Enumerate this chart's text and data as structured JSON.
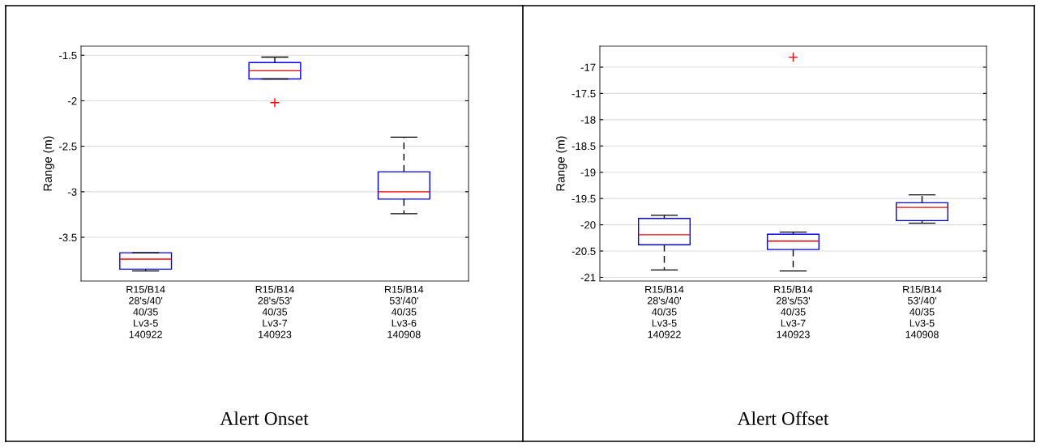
{
  "chart_data": [
    {
      "type": "box",
      "title": "Alert Onset",
      "ylabel": "Range (m)",
      "categories": [
        "R15/B14\n28's/40'\n40/35\nLv3-5\n140922",
        "R15/B14\n28's/53'\n40/35\nLv3-7\n140923",
        "R15/B14\n53'/40'\n40/35\nLv3-6\n140908"
      ],
      "boxes": [
        {
          "low": -3.87,
          "q1": -3.85,
          "median": -3.74,
          "q3": -3.67,
          "high": -3.67
        },
        {
          "low": -1.76,
          "q1": -1.76,
          "median": -1.67,
          "q3": -1.58,
          "high": -1.52,
          "outliers": [
            -2.02
          ]
        },
        {
          "low": -3.24,
          "q1": -3.08,
          "median": -3.0,
          "q3": -2.78,
          "high": -2.4
        }
      ],
      "ylim": [
        -3.98,
        -1.4
      ],
      "yticks": [
        -3.5,
        -3,
        -2.5,
        -2,
        -1.5
      ],
      "grid": "y"
    },
    {
      "type": "box",
      "title": "Alert Offset",
      "ylabel": "Range (m)",
      "categories": [
        "R15/B14\n28's/40'\n40/35\nLv3-5\n140922",
        "R15/B14\n28's/53'\n40/35\nLv3-7\n140923",
        "R15/B14\n53'/40'\n40/35\nLv3-5\n140908"
      ],
      "boxes": [
        {
          "low": -20.86,
          "q1": -20.38,
          "median": -20.19,
          "q3": -19.88,
          "high": -19.82
        },
        {
          "low": -20.88,
          "q1": -20.47,
          "median": -20.31,
          "q3": -20.18,
          "high": -20.14,
          "outliers": [
            -16.81
          ]
        },
        {
          "low": -19.97,
          "q1": -19.92,
          "median": -19.67,
          "q3": -19.58,
          "high": -19.43
        }
      ],
      "ylim": [
        -21.07,
        -16.6
      ],
      "yticks": [
        -21,
        -20.5,
        -20,
        -19.5,
        -19,
        -18.5,
        -18,
        -17.5,
        -17
      ],
      "grid": "y"
    }
  ]
}
